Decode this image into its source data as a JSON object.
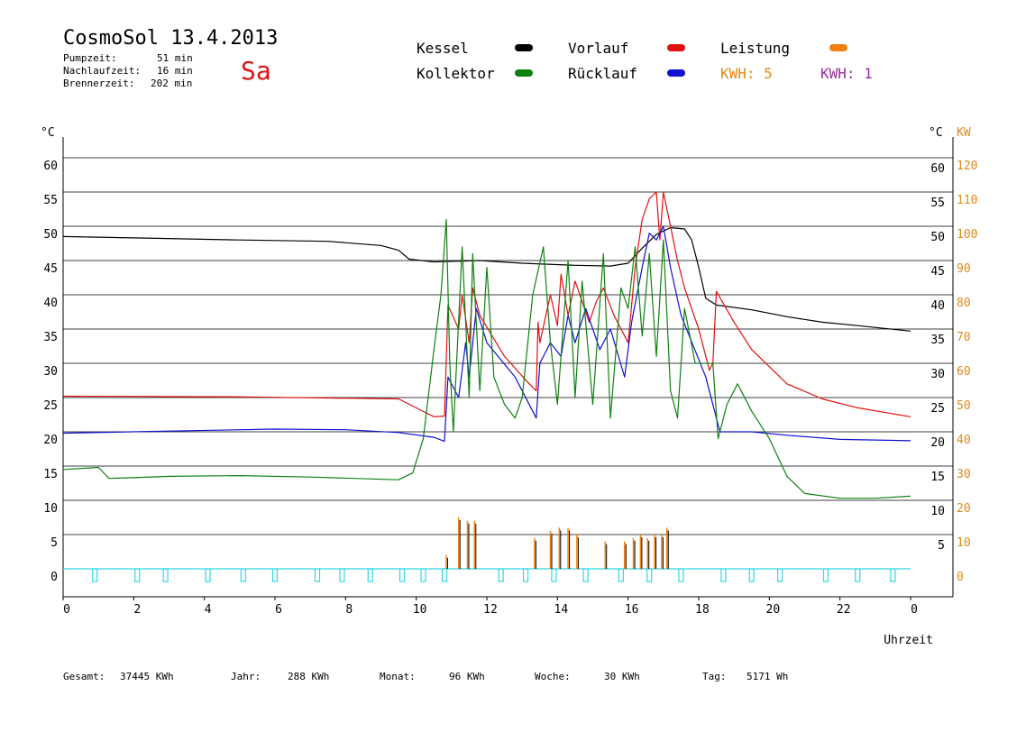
{
  "header": {
    "title": "CosmoSol 13.4.2013",
    "day": "Sa",
    "stats": [
      {
        "label": "Pumpzeit:",
        "value": "51 min"
      },
      {
        "label": "Nachlaufzeit:",
        "value": "16 min"
      },
      {
        "label": "Brennerzeit:",
        "value": "202 min"
      }
    ]
  },
  "legend": [
    {
      "label": "Kessel",
      "color": "#000000"
    },
    {
      "label": "Vorlauf",
      "color": "#e01010"
    },
    {
      "label": "Leistung",
      "color": "#f08010"
    },
    {
      "label": "Kollektor",
      "color": "#108010"
    },
    {
      "label": "Rücklauf",
      "color": "#1010d0"
    }
  ],
  "kwh": [
    {
      "label": "KWH: 5",
      "color": "#e08a18"
    },
    {
      "label": "KWH: 1",
      "color": "#9a2aa0"
    }
  ],
  "footer": [
    {
      "label": "Gesamt:",
      "value": "37445 KWh"
    },
    {
      "label": "Jahr:",
      "value": "288 KWh"
    },
    {
      "label": "Monat:",
      "value": "96 KWh"
    },
    {
      "label": "Woche:",
      "value": "30 KWh"
    },
    {
      "label": "Tag:",
      "value": "5171 Wh"
    }
  ],
  "chart_data": {
    "type": "line",
    "xlabel": "Uhrzeit",
    "ylabel_left": "°C",
    "ylabel_right": "°C",
    "ylabel_power": "KW",
    "x_ticks": [
      "0",
      "2",
      "4",
      "6",
      "8",
      "10",
      "12",
      "14",
      "16",
      "18",
      "20",
      "22",
      "0"
    ],
    "y_ticks": [
      0,
      5,
      10,
      15,
      20,
      25,
      30,
      35,
      40,
      45,
      50,
      55,
      60
    ],
    "y2_ticks": [
      0,
      10,
      20,
      30,
      40,
      50,
      60,
      70,
      80,
      90,
      100,
      110,
      120
    ],
    "xlim": [
      0,
      24
    ],
    "ylim": [
      0,
      60
    ],
    "grid": true,
    "series": [
      {
        "name": "Kessel",
        "color": "#000000",
        "points": [
          [
            0,
            48.5
          ],
          [
            2,
            48.3
          ],
          [
            5,
            48
          ],
          [
            7.5,
            47.8
          ],
          [
            9,
            47.2
          ],
          [
            9.5,
            46.5
          ],
          [
            9.8,
            45.2
          ],
          [
            10.5,
            44.8
          ],
          [
            11.8,
            45
          ],
          [
            13,
            44.6
          ],
          [
            14.5,
            44.3
          ],
          [
            15.5,
            44.2
          ],
          [
            16,
            44.6
          ],
          [
            16.4,
            46.8
          ],
          [
            16.8,
            48.8
          ],
          [
            17.2,
            49.8
          ],
          [
            17.6,
            49.6
          ],
          [
            17.8,
            48
          ],
          [
            18,
            44
          ],
          [
            18.2,
            39.5
          ],
          [
            18.5,
            38.5
          ],
          [
            19.5,
            37.8
          ],
          [
            20.5,
            36.8
          ],
          [
            21.5,
            36
          ],
          [
            22.5,
            35.5
          ],
          [
            24,
            34.7
          ]
        ]
      },
      {
        "name": "Vorlauf",
        "color": "#e01010",
        "points": [
          [
            0,
            25.2
          ],
          [
            5,
            25.1
          ],
          [
            9.5,
            24.8
          ],
          [
            10,
            23.5
          ],
          [
            10.5,
            22.2
          ],
          [
            10.8,
            22.3
          ],
          [
            10.9,
            38.5
          ],
          [
            11.2,
            35
          ],
          [
            11.3,
            40
          ],
          [
            11.5,
            33
          ],
          [
            11.6,
            41
          ],
          [
            11.8,
            37
          ],
          [
            12.5,
            31
          ],
          [
            13.2,
            27
          ],
          [
            13.4,
            26
          ],
          [
            13.45,
            36
          ],
          [
            13.5,
            33
          ],
          [
            13.8,
            40
          ],
          [
            14,
            35.5
          ],
          [
            14.1,
            43
          ],
          [
            14.3,
            37
          ],
          [
            14.5,
            42
          ],
          [
            14.9,
            36
          ],
          [
            15.1,
            39
          ],
          [
            15.3,
            41
          ],
          [
            15.6,
            37
          ],
          [
            16,
            33
          ],
          [
            16.2,
            44
          ],
          [
            16.4,
            51
          ],
          [
            16.6,
            54
          ],
          [
            16.8,
            55
          ],
          [
            16.9,
            48
          ],
          [
            17.0,
            55
          ],
          [
            17.2,
            50
          ],
          [
            17.4,
            45
          ],
          [
            17.6,
            41
          ],
          [
            18.0,
            35
          ],
          [
            18.3,
            29
          ],
          [
            18.4,
            30
          ],
          [
            18.5,
            40.5
          ],
          [
            19,
            36
          ],
          [
            19.5,
            32
          ],
          [
            20.5,
            27
          ],
          [
            21.5,
            24.8
          ],
          [
            22.5,
            23.5
          ],
          [
            24,
            22.2
          ]
        ]
      },
      {
        "name": "Rücklauf",
        "color": "#1010d0",
        "points": [
          [
            0,
            19.8
          ],
          [
            3,
            20.1
          ],
          [
            6,
            20.4
          ],
          [
            8,
            20.3
          ],
          [
            9.5,
            19.9
          ],
          [
            10.5,
            19.2
          ],
          [
            10.8,
            18.6
          ],
          [
            10.9,
            28
          ],
          [
            11.2,
            25
          ],
          [
            11.4,
            33
          ],
          [
            11.5,
            28
          ],
          [
            11.7,
            38
          ],
          [
            12,
            33
          ],
          [
            12.8,
            28
          ],
          [
            13.4,
            22
          ],
          [
            13.5,
            30
          ],
          [
            13.8,
            33
          ],
          [
            14.1,
            31
          ],
          [
            14.3,
            37
          ],
          [
            14.5,
            33
          ],
          [
            14.8,
            38
          ],
          [
            15.2,
            32
          ],
          [
            15.5,
            35
          ],
          [
            15.9,
            28
          ],
          [
            16.1,
            36
          ],
          [
            16.4,
            44
          ],
          [
            16.6,
            49
          ],
          [
            16.8,
            48
          ],
          [
            17.0,
            50
          ],
          [
            17.2,
            44
          ],
          [
            17.5,
            37
          ],
          [
            18.2,
            28
          ],
          [
            18.5,
            22
          ],
          [
            18.6,
            20
          ],
          [
            19.5,
            20
          ],
          [
            20.5,
            19.5
          ],
          [
            22,
            18.9
          ],
          [
            24,
            18.7
          ]
        ]
      },
      {
        "name": "Kollektor",
        "color": "#108010",
        "points": [
          [
            0,
            14.5
          ],
          [
            1,
            14.8
          ],
          [
            1.3,
            13.2
          ],
          [
            2,
            13.3
          ],
          [
            3,
            13.5
          ],
          [
            5,
            13.6
          ],
          [
            7,
            13.4
          ],
          [
            9.5,
            13
          ],
          [
            9.9,
            14
          ],
          [
            10.2,
            19
          ],
          [
            10.5,
            32
          ],
          [
            10.7,
            40
          ],
          [
            10.85,
            51
          ],
          [
            10.95,
            30
          ],
          [
            11.05,
            20
          ],
          [
            11.3,
            47
          ],
          [
            11.5,
            25
          ],
          [
            11.6,
            46
          ],
          [
            11.8,
            26
          ],
          [
            12,
            44
          ],
          [
            12.2,
            28
          ],
          [
            12.5,
            24
          ],
          [
            12.8,
            22
          ],
          [
            13,
            25
          ],
          [
            13.3,
            40
          ],
          [
            13.6,
            47
          ],
          [
            13.8,
            33
          ],
          [
            14,
            24
          ],
          [
            14.3,
            45
          ],
          [
            14.5,
            25
          ],
          [
            14.7,
            42
          ],
          [
            15,
            24
          ],
          [
            15.3,
            46
          ],
          [
            15.5,
            22
          ],
          [
            15.8,
            41
          ],
          [
            16,
            38
          ],
          [
            16.2,
            47
          ],
          [
            16.4,
            34
          ],
          [
            16.6,
            46
          ],
          [
            16.8,
            31
          ],
          [
            17.0,
            48
          ],
          [
            17.2,
            26
          ],
          [
            17.4,
            22
          ],
          [
            17.6,
            38
          ],
          [
            17.9,
            30
          ],
          [
            18.4,
            30
          ],
          [
            18.55,
            19
          ],
          [
            18.8,
            24
          ],
          [
            19.1,
            27
          ],
          [
            19.5,
            23
          ],
          [
            20,
            19
          ],
          [
            20.5,
            13.5
          ],
          [
            21,
            11
          ],
          [
            22,
            10.3
          ],
          [
            23,
            10.3
          ],
          [
            24,
            10.6
          ]
        ]
      }
    ],
    "power_events": [
      {
        "x": 10.85,
        "kw": 4
      },
      {
        "x": 11.2,
        "kw": 15
      },
      {
        "x": 11.45,
        "kw": 14
      },
      {
        "x": 11.65,
        "kw": 14
      },
      {
        "x": 13.35,
        "kw": 9
      },
      {
        "x": 13.8,
        "kw": 11
      },
      {
        "x": 14.05,
        "kw": 12
      },
      {
        "x": 14.3,
        "kw": 12
      },
      {
        "x": 14.55,
        "kw": 10
      },
      {
        "x": 15.35,
        "kw": 8
      },
      {
        "x": 15.9,
        "kw": 8
      },
      {
        "x": 16.15,
        "kw": 9
      },
      {
        "x": 16.35,
        "kw": 10
      },
      {
        "x": 16.55,
        "kw": 9
      },
      {
        "x": 16.75,
        "kw": 10
      },
      {
        "x": 16.95,
        "kw": 10
      },
      {
        "x": 17.1,
        "kw": 12
      }
    ],
    "pump_markers": [
      0.9,
      2.1,
      2.9,
      4.1,
      5.1,
      6.0,
      7.2,
      7.9,
      8.7,
      9.6,
      10.2,
      10.8,
      12.4,
      13.1,
      13.9,
      14.8,
      15.8,
      16.6,
      17.5,
      18.7,
      19.5,
      20.3,
      21.6,
      22.5,
      23.5
    ]
  }
}
